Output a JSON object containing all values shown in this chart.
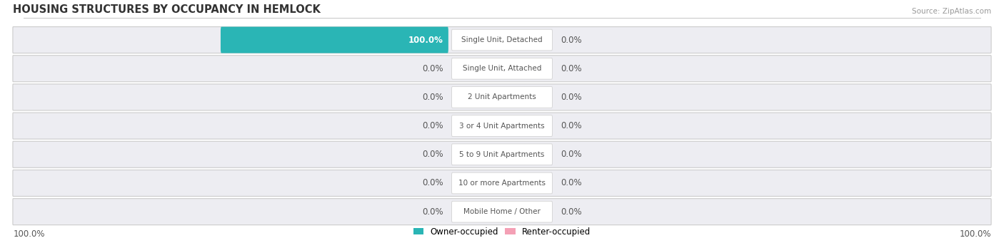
{
  "title": "HOUSING STRUCTURES BY OCCUPANCY IN HEMLOCK",
  "source": "Source: ZipAtlas.com",
  "categories": [
    "Single Unit, Detached",
    "Single Unit, Attached",
    "2 Unit Apartments",
    "3 or 4 Unit Apartments",
    "5 to 9 Unit Apartments",
    "10 or more Apartments",
    "Mobile Home / Other"
  ],
  "owner_values": [
    100.0,
    0.0,
    0.0,
    0.0,
    0.0,
    0.0,
    0.0
  ],
  "renter_values": [
    0.0,
    0.0,
    0.0,
    0.0,
    0.0,
    0.0,
    0.0
  ],
  "owner_color": "#2ab5b5",
  "renter_color": "#f4a0b5",
  "row_bg_color": "#ededf2",
  "label_color": "#555555",
  "title_color": "#333333",
  "source_color": "#999999",
  "figsize": [
    14.06,
    3.41
  ],
  "dpi": 100,
  "total": 100.0,
  "left_label": "100.0%",
  "right_label": "100.0%",
  "scale": 50.0,
  "label_area": 12.0,
  "bar_height": 0.62
}
